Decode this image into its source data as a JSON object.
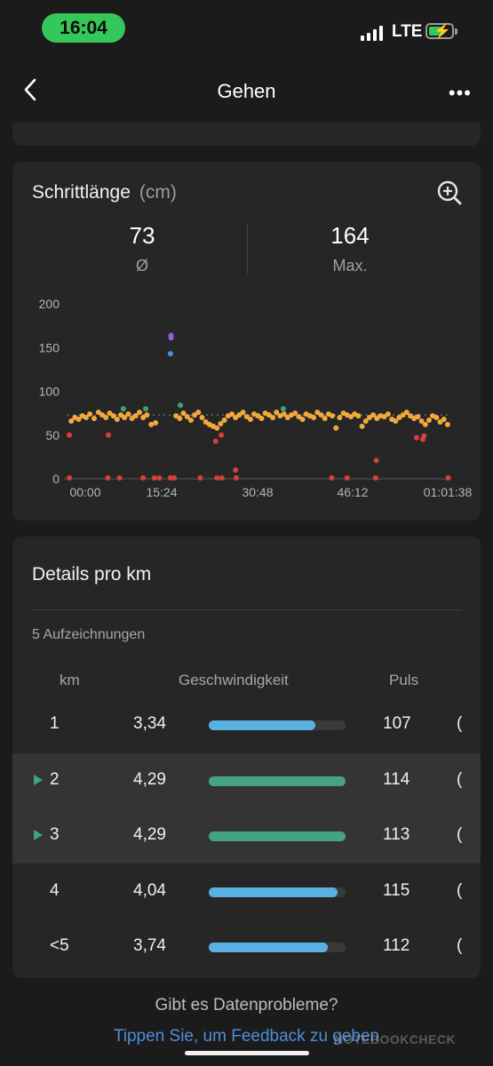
{
  "status_bar": {
    "time": "16:04",
    "network": "LTE"
  },
  "header": {
    "title": "Gehen"
  },
  "stride_card": {
    "title": "Schrittlänge",
    "unit": "(cm)",
    "avg_value": "73",
    "avg_label": "Ø",
    "max_value": "164",
    "max_label": "Max."
  },
  "chart_data": {
    "type": "scatter",
    "ylim": [
      0,
      200
    ],
    "yticks": [
      "200",
      "150",
      "100",
      "50",
      "0"
    ],
    "xticks": [
      "00:00",
      "15:24",
      "30:48",
      "46:12",
      "01:01:38"
    ],
    "x_range_minutes": [
      0,
      61.6
    ],
    "average_line": 73,
    "grid": false,
    "colors": {
      "normal": "#f2a93b",
      "low": "#d9403a",
      "teal": "#3aa37d",
      "high_blue": "#4d8fd8",
      "high_purple": "#9a5ae0"
    },
    "series": [
      {
        "color_key": "normal",
        "points": [
          [
            0.6,
            66
          ],
          [
            1.2,
            70
          ],
          [
            1.8,
            68
          ],
          [
            2.4,
            72
          ],
          [
            3.0,
            70
          ],
          [
            3.6,
            74
          ],
          [
            4.3,
            69
          ],
          [
            5.0,
            76
          ],
          [
            5.6,
            73
          ],
          [
            6.2,
            70
          ],
          [
            6.8,
            75
          ],
          [
            7.4,
            72
          ],
          [
            8.0,
            68
          ],
          [
            8.6,
            73
          ],
          [
            9.2,
            70
          ],
          [
            9.8,
            74
          ],
          [
            10.4,
            69
          ],
          [
            11.0,
            72
          ],
          [
            11.6,
            76
          ],
          [
            12.2,
            70
          ],
          [
            12.8,
            73
          ],
          [
            13.5,
            62
          ],
          [
            14.2,
            64
          ],
          [
            17.5,
            72
          ],
          [
            18.1,
            69
          ],
          [
            18.7,
            75
          ],
          [
            19.3,
            71
          ],
          [
            19.9,
            67
          ],
          [
            20.5,
            73
          ],
          [
            21.1,
            76
          ],
          [
            21.7,
            70
          ],
          [
            22.3,
            65
          ],
          [
            22.9,
            62
          ],
          [
            23.5,
            60
          ],
          [
            24.1,
            58
          ],
          [
            24.7,
            63
          ],
          [
            25.3,
            67
          ],
          [
            25.9,
            72
          ],
          [
            26.5,
            74
          ],
          [
            27.1,
            70
          ],
          [
            27.7,
            73
          ],
          [
            28.3,
            76
          ],
          [
            28.9,
            71
          ],
          [
            29.5,
            68
          ],
          [
            30.1,
            74
          ],
          [
            30.7,
            72
          ],
          [
            31.3,
            69
          ],
          [
            31.9,
            75
          ],
          [
            32.5,
            73
          ],
          [
            33.1,
            70
          ],
          [
            33.7,
            76
          ],
          [
            34.3,
            72
          ],
          [
            34.9,
            74
          ],
          [
            35.5,
            70
          ],
          [
            36.1,
            73
          ],
          [
            36.7,
            75
          ],
          [
            37.3,
            71
          ],
          [
            37.9,
            68
          ],
          [
            38.5,
            74
          ],
          [
            39.1,
            72
          ],
          [
            39.7,
            70
          ],
          [
            40.3,
            76
          ],
          [
            40.9,
            73
          ],
          [
            41.5,
            69
          ],
          [
            42.1,
            74
          ],
          [
            42.7,
            72
          ],
          [
            43.3,
            58
          ],
          [
            43.9,
            70
          ],
          [
            44.5,
            75
          ],
          [
            45.1,
            73
          ],
          [
            45.7,
            71
          ],
          [
            46.3,
            74
          ],
          [
            46.9,
            72
          ],
          [
            47.5,
            60
          ],
          [
            48.1,
            66
          ],
          [
            48.7,
            70
          ],
          [
            49.3,
            73
          ],
          [
            49.9,
            69
          ],
          [
            50.5,
            72
          ],
          [
            51.1,
            71
          ],
          [
            51.7,
            74
          ],
          [
            52.3,
            68
          ],
          [
            52.9,
            66
          ],
          [
            53.5,
            70
          ],
          [
            54.1,
            73
          ],
          [
            54.7,
            76
          ],
          [
            55.3,
            72
          ],
          [
            55.9,
            69
          ],
          [
            56.5,
            71
          ],
          [
            57.1,
            66
          ],
          [
            57.7,
            62
          ],
          [
            58.3,
            67
          ],
          [
            58.9,
            72
          ],
          [
            59.5,
            70
          ],
          [
            60.1,
            65
          ],
          [
            60.7,
            68
          ],
          [
            61.3,
            62
          ]
        ]
      },
      {
        "color_key": "teal",
        "points": [
          [
            9.0,
            80
          ],
          [
            12.6,
            80
          ],
          [
            18.2,
            84
          ],
          [
            34.8,
            80
          ]
        ]
      },
      {
        "color_key": "low",
        "points": [
          [
            0.3,
            50
          ],
          [
            0.3,
            1
          ],
          [
            6.6,
            50
          ],
          [
            6.5,
            1
          ],
          [
            8.4,
            1
          ],
          [
            12.2,
            1
          ],
          [
            14.0,
            1
          ],
          [
            14.8,
            1
          ],
          [
            16.6,
            1
          ],
          [
            17.2,
            1
          ],
          [
            21.4,
            1
          ],
          [
            23.9,
            43
          ],
          [
            24.8,
            50
          ],
          [
            24.1,
            1
          ],
          [
            24.9,
            1
          ],
          [
            27.1,
            10
          ],
          [
            27.2,
            1
          ],
          [
            42.6,
            1
          ],
          [
            45.1,
            1
          ],
          [
            49.7,
            1
          ],
          [
            49.8,
            21
          ],
          [
            56.3,
            47
          ],
          [
            57.3,
            45
          ],
          [
            57.5,
            49
          ],
          [
            61.4,
            1
          ]
        ]
      },
      {
        "color_key": "high_blue",
        "points": [
          [
            16.6,
            143
          ]
        ]
      },
      {
        "color_key": "high_purple",
        "points": [
          [
            16.7,
            161
          ],
          [
            16.7,
            164
          ]
        ]
      }
    ]
  },
  "details": {
    "title": "Details pro km",
    "records": "5 Aufzeichnungen",
    "col_km": "km",
    "col_speed": "Geschwindigkeit",
    "col_pulse": "Puls",
    "rows": [
      {
        "km": "1",
        "speed": "3,34",
        "pulse": "107",
        "cut": "(",
        "fill": 0.78,
        "color": "#5bb0e3",
        "highlight": false
      },
      {
        "km": "2",
        "speed": "4,29",
        "pulse": "114",
        "cut": "(",
        "fill": 1.0,
        "color": "#45a47f",
        "highlight": true
      },
      {
        "km": "3",
        "speed": "4,29",
        "pulse": "113",
        "cut": "(",
        "fill": 1.0,
        "color": "#45a47f",
        "highlight": true
      },
      {
        "km": "4",
        "speed": "4,04",
        "pulse": "115",
        "cut": "(",
        "fill": 0.94,
        "color": "#5bb0e3",
        "highlight": false
      },
      {
        "km": "<5",
        "speed": "3,74",
        "pulse": "112",
        "cut": "(",
        "fill": 0.87,
        "color": "#5bb0e3",
        "highlight": false
      }
    ]
  },
  "footer": {
    "question": "Gibt es Datenprobleme?",
    "link": "Tippen Sie, um Feedback zu geben"
  },
  "watermark": "NOTEBOOKCHECK"
}
